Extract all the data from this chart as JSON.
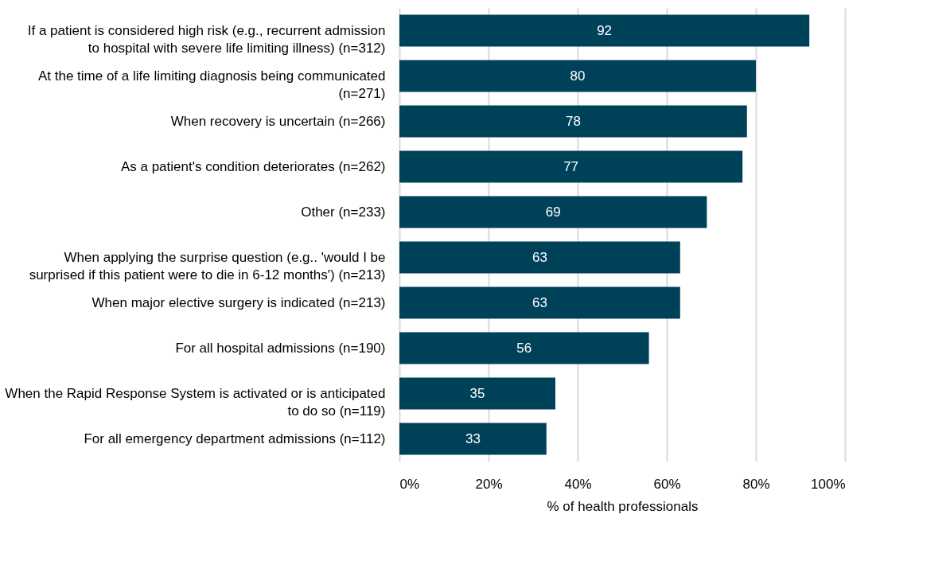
{
  "chart_data": {
    "type": "bar",
    "orientation": "horizontal",
    "xlabel": "% of health professionals",
    "categories": [
      "If a patient is considered high risk (e.g., recurrent admission to hospital with severe life limiting illness) (n=312)",
      "At the time of a life limiting diagnosis being communicated (n=271)",
      "When recovery is uncertain (n=266)",
      "As a patient's condition deteriorates (n=262)",
      "Other (n=233)",
      "When applying the surprise question (e.g.. 'would I be surprised if this patient were to die in 6-12 months') (n=213)",
      "When major elective surgery is indicated (n=213)",
      "For all hospital admissions (n=190)",
      "When the Rapid Response System is activated or is anticipated to do so (n=119)",
      "For all emergency department admissions (n=112)"
    ],
    "values": [
      92,
      80,
      78,
      77,
      69,
      63,
      63,
      56,
      35,
      33
    ],
    "color": "#00415a",
    "data_labels": true,
    "grid": "x",
    "xlim": [
      0,
      100
    ],
    "xticks": [
      {
        "value": 0,
        "label": "0%"
      },
      {
        "value": 20,
        "label": "20%"
      },
      {
        "value": 40,
        "label": "40%"
      },
      {
        "value": 60,
        "label": "60%"
      },
      {
        "value": 80,
        "label": "80%"
      },
      {
        "value": 100,
        "label": "100%"
      }
    ]
  }
}
